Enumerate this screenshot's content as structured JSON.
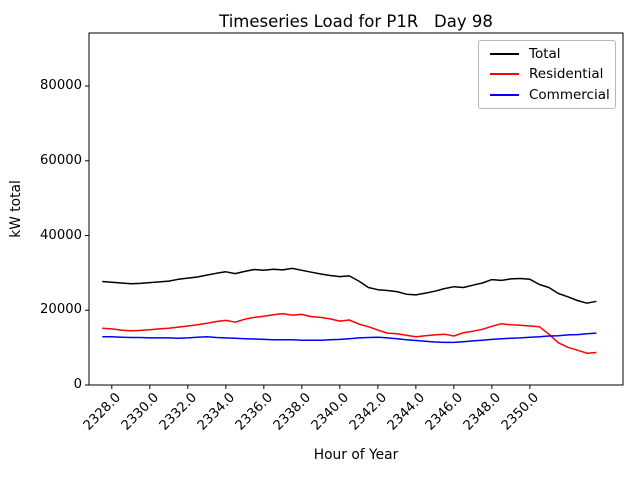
{
  "chart_data": {
    "type": "line",
    "title": "Timeseries Load for P1R   Day 98",
    "xlabel": "Hour of Year",
    "ylabel": "kW total",
    "xlim": [
      2326.8,
      2354.9
    ],
    "ylim": [
      0,
      94200
    ],
    "grid": false,
    "legend_position": "upper right",
    "x_ticks": [
      2328,
      2330,
      2332,
      2334,
      2336,
      2338,
      2340,
      2342,
      2344,
      2346,
      2348,
      2350
    ],
    "x_tick_labels": [
      "2328.0",
      "2330.0",
      "2332.0",
      "2334.0",
      "2336.0",
      "2338.0",
      "2340.0",
      "2342.0",
      "2344.0",
      "2346.0",
      "2348.0",
      "2350.0"
    ],
    "y_ticks": [
      0,
      20000,
      40000,
      60000,
      80000
    ],
    "y_tick_labels": [
      "0",
      "20000",
      "40000",
      "60000",
      "80000"
    ],
    "x": [
      2327.5,
      2328.0,
      2328.5,
      2329.0,
      2329.5,
      2330.0,
      2330.5,
      2331.0,
      2331.5,
      2332.0,
      2332.5,
      2333.0,
      2333.5,
      2334.0,
      2334.5,
      2335.0,
      2335.5,
      2336.0,
      2336.5,
      2337.0,
      2337.5,
      2338.0,
      2338.5,
      2339.0,
      2339.5,
      2340.0,
      2340.5,
      2341.0,
      2341.5,
      2342.0,
      2342.5,
      2343.0,
      2343.5,
      2344.0,
      2344.5,
      2345.0,
      2345.5,
      2346.0,
      2346.5,
      2347.0,
      2347.5,
      2348.0,
      2348.5,
      2349.0,
      2349.5,
      2350.0,
      2350.5,
      2351.0,
      2351.5,
      2352.0,
      2352.5,
      2353.0,
      2353.5
    ],
    "series": [
      {
        "name": "Total",
        "color": "#000000",
        "values": [
          27700,
          27500,
          27300,
          27100,
          27200,
          27400,
          27600,
          27800,
          28300,
          28600,
          28900,
          29400,
          29900,
          30300,
          29800,
          30400,
          30900,
          30700,
          31000,
          30800,
          31200,
          30700,
          30200,
          29700,
          29300,
          29000,
          29200,
          27800,
          26100,
          25500,
          25300,
          25000,
          24300,
          24100,
          24600,
          25100,
          25800,
          26300,
          26100,
          26700,
          27300,
          28200,
          28000,
          28400,
          28500,
          28300,
          26900,
          26100,
          24500,
          23600,
          22600,
          21900,
          22400
        ]
      },
      {
        "name": "Residential",
        "color": "#ff0000",
        "values": [
          15200,
          15000,
          14700,
          14500,
          14600,
          14800,
          15000,
          15200,
          15500,
          15800,
          16100,
          16500,
          17000,
          17300,
          16800,
          17600,
          18100,
          18400,
          18800,
          19100,
          18700,
          18900,
          18300,
          18100,
          17700,
          17100,
          17400,
          16300,
          15600,
          14700,
          13900,
          13700,
          13300,
          12900,
          13200,
          13400,
          13600,
          13100,
          14000,
          14400,
          14900,
          15700,
          16400,
          16100,
          16000,
          15800,
          15600,
          13600,
          11300,
          10100,
          9300,
          8500,
          8700
        ]
      },
      {
        "name": "Commercial",
        "color": "#0000ff",
        "values": [
          12900,
          12900,
          12800,
          12700,
          12700,
          12600,
          12600,
          12600,
          12500,
          12600,
          12800,
          12900,
          12700,
          12600,
          12500,
          12400,
          12300,
          12200,
          12100,
          12100,
          12100,
          12000,
          12000,
          12000,
          12100,
          12200,
          12400,
          12600,
          12700,
          12800,
          12600,
          12400,
          12100,
          11900,
          11700,
          11500,
          11400,
          11400,
          11600,
          11800,
          12000,
          12200,
          12400,
          12500,
          12600,
          12800,
          12900,
          13100,
          13200,
          13400,
          13500,
          13700,
          13900
        ]
      }
    ]
  }
}
